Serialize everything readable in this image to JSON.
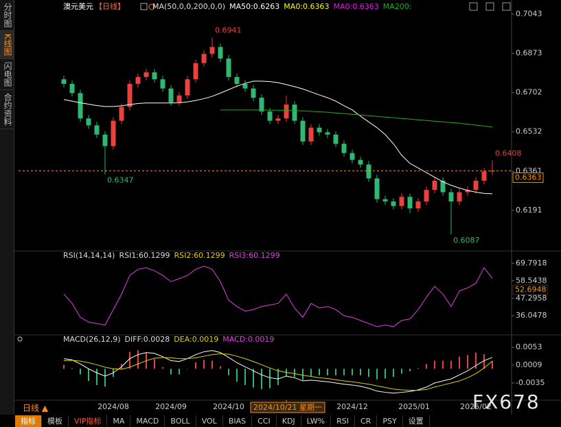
{
  "sidebar": [
    "分时图",
    "K线图",
    "闪电图",
    "合约资料"
  ],
  "period_label": "日线 ▲",
  "watermark": "FX678",
  "toolbar": [
    "指标",
    "模板",
    "VIP指标",
    "MA",
    "MACD",
    "BOLL",
    "VOL",
    "BIAS",
    "CCI",
    "KDJ",
    "LW%",
    "RSI",
    "CR",
    "PSY",
    "设置"
  ],
  "chart_data": [
    {
      "type": "candlestick",
      "title": "澳元美元",
      "period": "【日线】",
      "legend": [
        {
          "text": "MA(50,0,0,200,0,0)",
          "color": "#dddddd"
        },
        {
          "text": "MA50:0.6263",
          "color": "#ffffff"
        },
        {
          "text": "MA0:0.6363",
          "color": "#ffff00"
        },
        {
          "text": "MA0:0.6363",
          "color": "#ff00ff"
        },
        {
          "text": "MA200:",
          "color": "#00c000"
        }
      ],
      "xlim": [
        -5.5,
        54.5
      ],
      "ylim": [
        0.603,
        0.708
      ],
      "yticks": [
        0.7043,
        0.6873,
        0.6702,
        0.6532,
        0.6361,
        0.6191
      ],
      "up_color": "#e8413e",
      "down_color": "#2eb872",
      "last_price": 0.6363,
      "last_color": "#ff9900",
      "open": [
        0.676,
        0.674,
        0.67,
        0.659,
        0.656,
        0.652,
        0.647,
        0.658,
        0.664,
        0.674,
        0.677,
        0.679,
        0.676,
        0.672,
        0.666,
        0.669,
        0.676,
        0.683,
        0.687,
        0.69,
        0.685,
        0.677,
        0.674,
        0.672,
        0.668,
        0.662,
        0.658,
        0.659,
        0.665,
        0.658,
        0.649,
        0.655,
        0.653,
        0.652,
        0.648,
        0.644,
        0.641,
        0.639,
        0.633,
        0.624,
        0.623,
        0.621,
        0.625,
        0.62,
        0.623,
        0.628,
        0.632,
        0.627,
        0.623,
        0.627,
        0.628,
        0.632,
        0.636
      ],
      "high": [
        0.6775,
        0.6755,
        0.6715,
        0.6605,
        0.6575,
        0.6535,
        0.6595,
        0.6655,
        0.6755,
        0.6785,
        0.6805,
        0.6805,
        0.6775,
        0.6735,
        0.6705,
        0.6775,
        0.6845,
        0.6885,
        0.6941,
        0.6915,
        0.6865,
        0.6785,
        0.6755,
        0.6735,
        0.6695,
        0.6635,
        0.6605,
        0.669,
        0.6665,
        0.6595,
        0.6565,
        0.6565,
        0.6545,
        0.6535,
        0.6495,
        0.6455,
        0.6425,
        0.6405,
        0.6345,
        0.6255,
        0.6245,
        0.6265,
        0.6265,
        0.6245,
        0.6295,
        0.6335,
        0.6335,
        0.6285,
        0.6285,
        0.6295,
        0.6335,
        0.6375,
        0.6408
      ],
      "low": [
        0.6725,
        0.6685,
        0.6575,
        0.6545,
        0.6505,
        0.6347,
        0.6455,
        0.6565,
        0.6625,
        0.6725,
        0.6755,
        0.6745,
        0.6705,
        0.6645,
        0.6645,
        0.6675,
        0.6745,
        0.6815,
        0.6855,
        0.6835,
        0.6755,
        0.6725,
        0.6705,
        0.6665,
        0.6605,
        0.6565,
        0.6565,
        0.6575,
        0.6565,
        0.6475,
        0.6475,
        0.6515,
        0.6505,
        0.6465,
        0.6425,
        0.6395,
        0.6375,
        0.6315,
        0.6225,
        0.6215,
        0.6195,
        0.6195,
        0.618,
        0.6185,
        0.6215,
        0.6265,
        0.6255,
        0.6087,
        0.6215,
        0.6255,
        0.6265,
        0.6305,
        0.6345
      ],
      "close": [
        0.674,
        0.67,
        0.659,
        0.656,
        0.652,
        0.647,
        0.658,
        0.664,
        0.674,
        0.677,
        0.679,
        0.676,
        0.672,
        0.666,
        0.669,
        0.676,
        0.683,
        0.687,
        0.69,
        0.685,
        0.677,
        0.674,
        0.672,
        0.668,
        0.662,
        0.658,
        0.659,
        0.665,
        0.658,
        0.649,
        0.655,
        0.653,
        0.652,
        0.648,
        0.644,
        0.641,
        0.639,
        0.633,
        0.624,
        0.623,
        0.621,
        0.625,
        0.62,
        0.623,
        0.628,
        0.632,
        0.627,
        0.623,
        0.627,
        0.628,
        0.632,
        0.636,
        0.6363
      ],
      "series": [
        {
          "color": "#ffffff",
          "values": [
            0.6672,
            0.6665,
            0.6658,
            0.6652,
            0.6646,
            0.6642,
            0.6642,
            0.6645,
            0.665,
            0.6655,
            0.6657,
            0.6657,
            0.6657,
            0.6657,
            0.6658,
            0.6662,
            0.6668,
            0.6676,
            0.6686,
            0.67,
            0.6715,
            0.673,
            0.6742,
            0.6752,
            0.6752,
            0.675,
            0.6745,
            0.6737,
            0.6728,
            0.6718,
            0.6705,
            0.6692,
            0.668,
            0.6665,
            0.6645,
            0.6627,
            0.66,
            0.6575,
            0.655,
            0.652,
            0.648,
            0.643,
            0.6395,
            0.6375,
            0.6355,
            0.6335,
            0.6315,
            0.63,
            0.6288,
            0.6278,
            0.627,
            0.6265,
            0.6263
          ]
        },
        {
          "color": "#1fae1f",
          "values": [
            null,
            null,
            null,
            null,
            null,
            null,
            null,
            null,
            null,
            null,
            null,
            null,
            null,
            null,
            null,
            null,
            null,
            null,
            null,
            0.6627,
            0.6627,
            0.6627,
            0.6627,
            0.6627,
            0.6627,
            0.6626,
            0.6626,
            0.6625,
            0.6624,
            0.6623,
            0.6621,
            0.6619,
            0.6617,
            0.6614,
            0.6611,
            0.6608,
            0.6605,
            0.6602,
            0.6599,
            0.6596,
            0.6593,
            0.659,
            0.6587,
            0.6584,
            0.6581,
            0.6578,
            0.6575,
            0.6572,
            0.6569,
            0.6565,
            0.6561,
            0.6557,
            0.6553
          ]
        }
      ]
    },
    {
      "type": "line",
      "legend": [
        {
          "text": "RSI(14,14,14)",
          "color": "#dddddd"
        },
        {
          "text": "RSI1:60.1299",
          "color": "#dddddd"
        },
        {
          "text": "RSI2:60.1299",
          "color": "#e0d000"
        },
        {
          "text": "RSI3:60.1299",
          "color": "#e040e0"
        }
      ],
      "xlim": [
        -5.5,
        54.5
      ],
      "ylim": [
        26.8,
        72.9
      ],
      "yticks": [
        69.7918,
        58.5438,
        47.2958,
        36.0478
      ],
      "cursor_value": 52.6948,
      "cursor_color": "#ff9900",
      "series": [
        {
          "color": "#e040e0",
          "values": [
            50,
            44,
            35,
            32,
            31,
            30,
            40,
            50,
            62,
            66,
            67,
            65,
            62,
            58,
            60,
            62,
            66,
            68,
            66,
            58,
            46,
            42,
            39,
            40,
            42,
            43,
            44,
            50,
            41,
            35,
            44,
            41,
            42,
            40,
            36,
            35,
            33,
            31,
            29,
            30,
            29,
            33,
            34,
            40,
            48,
            55,
            50,
            42,
            52,
            54,
            57,
            67,
            60.1299
          ]
        }
      ]
    },
    {
      "type": "macd",
      "legend": [
        {
          "text": "MACD(26,12,9)",
          "color": "#dddddd"
        },
        {
          "text": "DIFF:0.0028",
          "color": "#dddddd"
        },
        {
          "text": "DEA:0.0019",
          "color": "#e0d000"
        },
        {
          "text": "MACD:0.0019",
          "color": "#e040e0"
        }
      ],
      "xlim": [
        -5.5,
        54.5
      ],
      "ylim": [
        -0.0074,
        0.0065
      ],
      "yticks": [
        0.0053,
        0.0009,
        -0.0035
      ],
      "up_color": "#e8413e",
      "down_color": "#2eb872",
      "values": [
        0.001,
        0.0002,
        -0.0014,
        -0.003,
        -0.004,
        -0.0044,
        -0.002,
        0.0012,
        0.0042,
        0.0046,
        0.004,
        0.0024,
        0.0004,
        -0.0014,
        -0.0014,
        0.0,
        0.0016,
        0.0022,
        0.002,
        0.0006,
        -0.0016,
        -0.0032,
        -0.004,
        -0.0046,
        -0.005,
        -0.0048,
        -0.004,
        -0.0018,
        -0.002,
        -0.0028,
        -0.0018,
        -0.0016,
        -0.0016,
        -0.0016,
        -0.0016,
        -0.0016,
        -0.0016,
        -0.002,
        -0.0026,
        -0.0024,
        -0.002,
        -0.0012,
        -0.0006,
        0.0002,
        0.0012,
        0.002,
        0.002,
        0.002,
        0.003,
        0.0034,
        0.004,
        0.0036,
        0.0019
      ],
      "series": [
        {
          "color": "#ffffff",
          "values": [
            0.0025,
            0.0022,
            0.0012,
            0.0,
            -0.001,
            -0.0018,
            -0.001,
            0.0005,
            0.0025,
            0.0035,
            0.004,
            0.0038,
            0.003,
            0.002,
            0.0018,
            0.0025,
            0.0035,
            0.0042,
            0.0045,
            0.004,
            0.0028,
            0.0015,
            0.0005,
            -0.0005,
            -0.0015,
            -0.0022,
            -0.0025,
            -0.0018,
            -0.0022,
            -0.003,
            -0.0028,
            -0.003,
            -0.0032,
            -0.0035,
            -0.0038,
            -0.004,
            -0.0043,
            -0.0048,
            -0.0055,
            -0.0058,
            -0.006,
            -0.0058,
            -0.0056,
            -0.0052,
            -0.0045,
            -0.0035,
            -0.003,
            -0.0025,
            -0.0015,
            -0.0005,
            0.0008,
            0.002,
            0.0028
          ]
        },
        {
          "color": "#e0d000",
          "values": [
            0.002,
            0.0021,
            0.0019,
            0.0015,
            0.001,
            0.0004,
            0.0,
            -0.0001,
            0.0004,
            0.0012,
            0.002,
            0.0026,
            0.0028,
            0.0027,
            0.0025,
            0.0025,
            0.0027,
            0.0031,
            0.0035,
            0.0037,
            0.0036,
            0.0031,
            0.0025,
            0.0018,
            0.001,
            0.0002,
            -0.0005,
            -0.0009,
            -0.0012,
            -0.0016,
            -0.0019,
            -0.0022,
            -0.0024,
            -0.0027,
            -0.003,
            -0.0032,
            -0.0035,
            -0.0038,
            -0.0042,
            -0.0046,
            -0.005,
            -0.0052,
            -0.0053,
            -0.0053,
            -0.0051,
            -0.0045,
            -0.004,
            -0.0035,
            -0.003,
            -0.0022,
            -0.0012,
            0.0002,
            0.0019
          ]
        }
      ],
      "xticks": [
        {
          "value": 6,
          "label": "2024/08"
        },
        {
          "value": 13,
          "label": "2024/09"
        },
        {
          "value": 20,
          "label": "2024/10"
        },
        {
          "value": 35,
          "label": "2024/12"
        },
        {
          "value": 42.5,
          "label": "2025/01"
        },
        {
          "value": 50,
          "label": "2025/02"
        }
      ],
      "cursor": {
        "x": 27,
        "label": "2024/10/21 星期一"
      }
    }
  ]
}
